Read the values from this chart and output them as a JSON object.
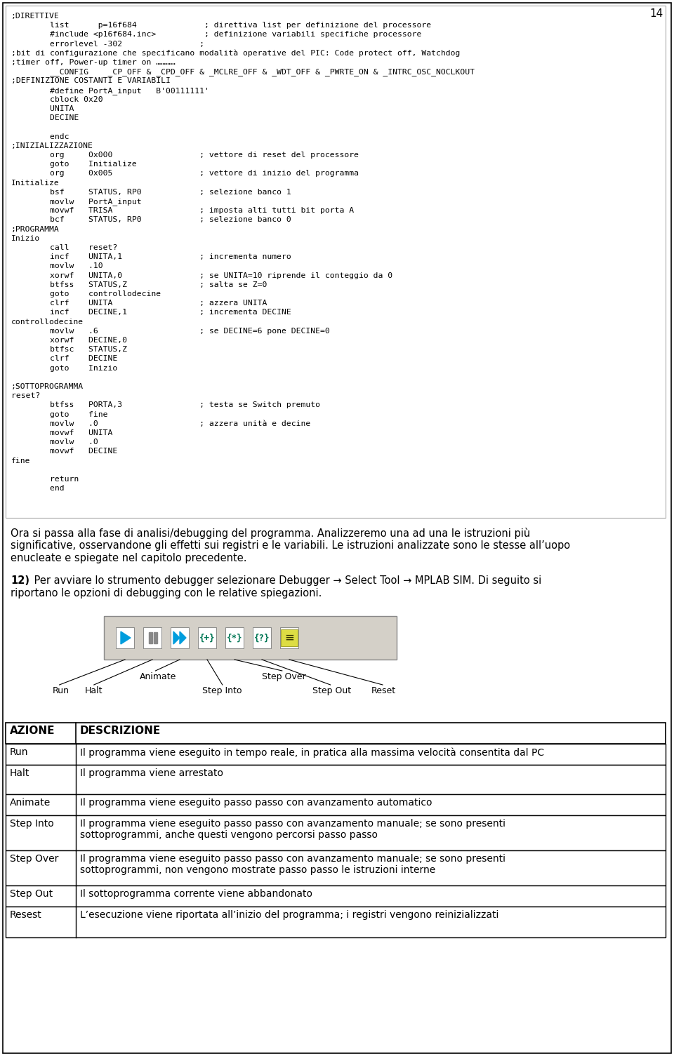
{
  "bg_color": "#ffffff",
  "code_fontsize": 8.2,
  "code_lines": [
    ";DIRETTIVE",
    "        list      p=16f684              ; direttiva list per definizione del processore",
    "        #include <p16f684.inc>          ; definizione variabili specifiche processore",
    "        errorlevel -302                ;",
    ";bit di configurazione che specificano modalità operative del PIC: Code protect off, Watchdog",
    ";timer off, Power-up timer on …………",
    "        __CONFIG    _CP_OFF & _CPD_OFF & _MCLRE_OFF & _WDT_OFF & _PWRTE_ON & _INTRC_OSC_NOCLKOUT",
    ";DEFINIZIONE COSTANTI E VARIABILI",
    "        #define PortA_input   B'00111111'",
    "        cblock 0x20",
    "        UNITA",
    "        DECINE",
    "",
    "        endc",
    ";INIZIALIZZAZIONE",
    "        org     0x000                  ; vettore di reset del processore",
    "        goto    Initialize",
    "        org     0x005                  ; vettore di inizio del programma",
    "Initialize",
    "        bsf     STATUS, RP0            ; selezione banco 1",
    "        movlw   PortA_input",
    "        movwf   TRISA                  ; imposta alti tutti bit porta A",
    "        bcf     STATUS, RP0            ; selezione banco 0",
    ";PROGRAMMA",
    "Inizio",
    "        call    reset?",
    "        incf    UNITA,1                ; incrementa numero",
    "        movlw   .10",
    "        xorwf   UNITA,0                ; se UNITA=10 riprende il conteggio da 0",
    "        btfss   STATUS,Z               ; salta se Z=0",
    "        goto    controllodecine",
    "        clrf    UNITA                  ; azzera UNITA",
    "        incf    DECINE,1               ; incrementa DECINE",
    "controllodecine",
    "        movlw   .6                     ; se DECINE=6 pone DECINE=0",
    "        xorwf   DECINE,0",
    "        btfsc   STATUS,Z",
    "        clrf    DECINE",
    "        goto    Inizio",
    "",
    ";SOTTOPROGRAMMA",
    "reset?",
    "        btfss   PORTA,3                ; testa se Switch premuto",
    "        goto    fine",
    "        movlw   .0                     ; azzera unità e decine",
    "        movwf   UNITA",
    "        movlw   .0",
    "        movwf   DECINE",
    "fine",
    "",
    "        return",
    "        end"
  ],
  "para1_lines": [
    "Ora si passa alla fase di analisi/debugging del programma. Analizzeremo una ad una le istruzioni più",
    "significative, osservandone gli effetti sui registri e le variabili. Le istruzioni analizzate sono le stesse all’uopo",
    "enucleate e spiegate nel capitolo precedente."
  ],
  "para2_line1": " Per avviare lo strumento debugger selezionare Debugger → Select Tool → MPLAB SIM. Di seguito si",
  "para2_line2": "riportano le opzioni di debugging con le relative spiegazioni.",
  "table_headers": [
    "AZIONE",
    "DESCRIZIONE"
  ],
  "table_rows": [
    [
      "Run",
      "Il programma viene eseguito in tempo reale, in pratica alla massima velocità consentita dal PC"
    ],
    [
      "Halt",
      "Il programma viene arrestato"
    ],
    [
      "Animate",
      "Il programma viene eseguito passo passo con avanzamento automatico"
    ],
    [
      "Step Into",
      "Il programma viene eseguito passo passo con avanzamento manuale; se sono presenti\nsottoprogrammi, anche questi vengono percorsi passo passo"
    ],
    [
      "Step Over",
      "Il programma viene eseguito passo passo con avanzamento manuale; se sono presenti\nsottoprogrammi, non vengono mostrate passo passo le istruzioni interne"
    ],
    [
      "Step Out",
      "Il sottoprogramma corrente viene abbandonato"
    ],
    [
      "Resest",
      "L’esecuzione viene riportata all’inizio del programma; i registri vengono reinizializzati"
    ]
  ],
  "table_row_heights": [
    30,
    42,
    30,
    50,
    50,
    30,
    44
  ],
  "page_number": "14",
  "btn_x": [
    178,
    217,
    256,
    295,
    334,
    373,
    412
  ],
  "btn_labels": [
    "Run",
    "Halt",
    "Animate",
    "Step Into",
    "Step Over",
    "Step Out",
    "Reset"
  ]
}
